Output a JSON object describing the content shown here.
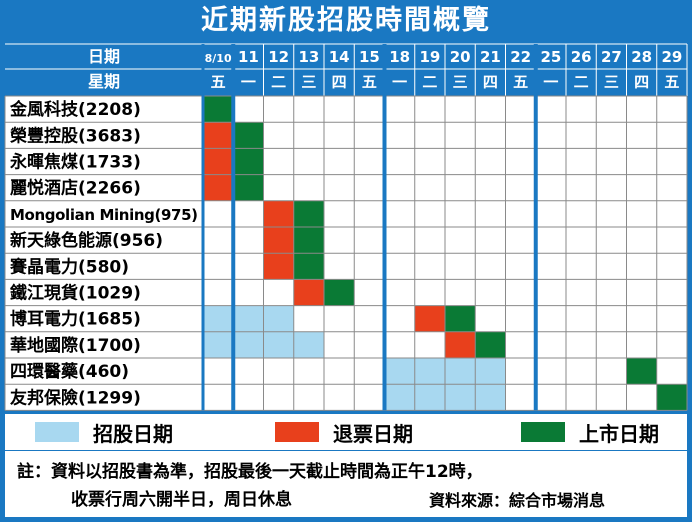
{
  "title": "近期新股招股時間概覽",
  "header": {
    "date_label": "日期",
    "weekday_label": "星期"
  },
  "chart_data": {
    "type": "table",
    "dates": [
      "8/10",
      "11",
      "12",
      "13",
      "14",
      "15",
      "18",
      "19",
      "20",
      "21",
      "22",
      "25",
      "26",
      "27",
      "28",
      "29"
    ],
    "weekdays": [
      "五",
      "一",
      "二",
      "三",
      "四",
      "五",
      "一",
      "二",
      "三",
      "四",
      "五",
      "一",
      "二",
      "三",
      "四",
      "五"
    ],
    "week_breaks_after": [
      "8/10",
      "15",
      "22"
    ],
    "stocks": [
      {
        "name": "金風科技(2208)",
        "subscription": [],
        "refund": [],
        "listing": [
          "8/10"
        ]
      },
      {
        "name": "榮豐控股(3683)",
        "subscription": [],
        "refund": [
          "8/10"
        ],
        "listing": [
          "11"
        ]
      },
      {
        "name": "永暉焦煤(1733)",
        "subscription": [],
        "refund": [
          "8/10"
        ],
        "listing": [
          "11"
        ]
      },
      {
        "name": "麗悦酒店(2266)",
        "subscription": [],
        "refund": [
          "8/10"
        ],
        "listing": [
          "11"
        ]
      },
      {
        "name": "Mongolian Mining(975)",
        "subscription": [],
        "refund": [
          "12"
        ],
        "listing": [
          "13"
        ]
      },
      {
        "name": "新天綠色能源(956)",
        "subscription": [],
        "refund": [
          "12"
        ],
        "listing": [
          "13"
        ]
      },
      {
        "name": "賽晶電力(580)",
        "subscription": [],
        "refund": [
          "12"
        ],
        "listing": [
          "13"
        ]
      },
      {
        "name": "鐵江現貨(1029)",
        "subscription": [],
        "refund": [
          "13"
        ],
        "listing": [
          "14"
        ]
      },
      {
        "name": "博耳電力(1685)",
        "subscription": [
          "8/10",
          "11",
          "12"
        ],
        "refund": [
          "19"
        ],
        "listing": [
          "20"
        ]
      },
      {
        "name": "華地國際(1700)",
        "subscription": [
          "8/10",
          "11",
          "12",
          "13"
        ],
        "refund": [
          "20"
        ],
        "listing": [
          "21"
        ]
      },
      {
        "name": "四環醫藥(460)",
        "subscription": [
          "18",
          "19",
          "20",
          "21"
        ],
        "refund": [],
        "listing": [
          "28"
        ]
      },
      {
        "name": "友邦保險(1299)",
        "subscription": [
          "18",
          "19",
          "20",
          "21"
        ],
        "refund": [],
        "listing": [
          "29"
        ]
      }
    ],
    "colors": {
      "subscription": "#a8d8f0",
      "refund": "#e8401c",
      "listing": "#0a7a35",
      "frame": "#1a78c2",
      "empty": "#ffffff"
    }
  },
  "legend": {
    "subscription": "招股日期",
    "refund": "退票日期",
    "listing": "上市日期"
  },
  "notes": {
    "line1": "註：資料以招股書為準，招股最後一天截止時間為正午12時，",
    "line2": "收票行周六開半日，周日休息",
    "source": "資料來源：綜合市場消息"
  }
}
